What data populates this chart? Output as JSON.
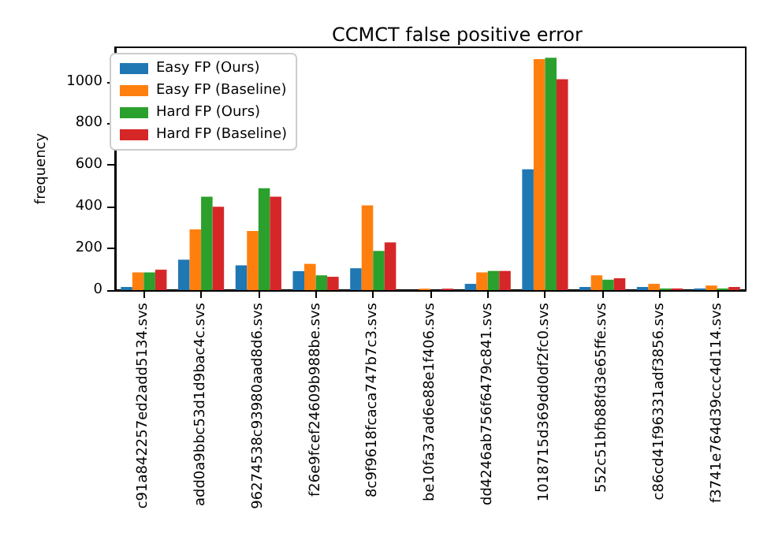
{
  "chart_data": {
    "type": "bar",
    "title": "CCMCT false positive error",
    "ylabel": "frequency",
    "categories": [
      "c91a842257ed2add5134.svs",
      "add0a9bbc53d1d9bac4c.svs",
      "96274538c93980aad8d6.svs",
      "f26e9fcef24609b988be.svs",
      "8c9f9618fcaca747b7c3.svs",
      "be10fa37ad6e88e1f406.svs",
      "dd4246ab756f6479c841.svs",
      "1018715d369dd0df2fc0.svs",
      "552c51bfb88fd3e65ffe.svs",
      "c86cd41f96331adf3856.svs",
      "f3741e764d39ccc4d114.svs"
    ],
    "series": [
      {
        "name": "Easy FP (Ours)",
        "color": "#1f77b4",
        "values": [
          15,
          146,
          119,
          91,
          105,
          null,
          30,
          580,
          15,
          15,
          8
        ]
      },
      {
        "name": "Easy FP (Baseline)",
        "color": "#ff7f0e",
        "values": [
          85,
          291,
          284,
          126,
          407,
          7,
          85,
          1108,
          71,
          30,
          22
        ]
      },
      {
        "name": "Hard FP (Ours)",
        "color": "#2ca02c",
        "values": [
          85,
          448,
          489,
          71,
          188,
          null,
          92,
          1115,
          50,
          8,
          8
        ]
      },
      {
        "name": "Hard FP (Baseline)",
        "color": "#d62728",
        "values": [
          98,
          400,
          448,
          64,
          229,
          7,
          92,
          1012,
          57,
          8,
          15
        ]
      }
    ],
    "ylim": [
      0,
      1165
    ],
    "yticks": [
      0,
      200,
      400,
      600,
      800,
      1000
    ],
    "grid": false,
    "legend": "top left"
  }
}
